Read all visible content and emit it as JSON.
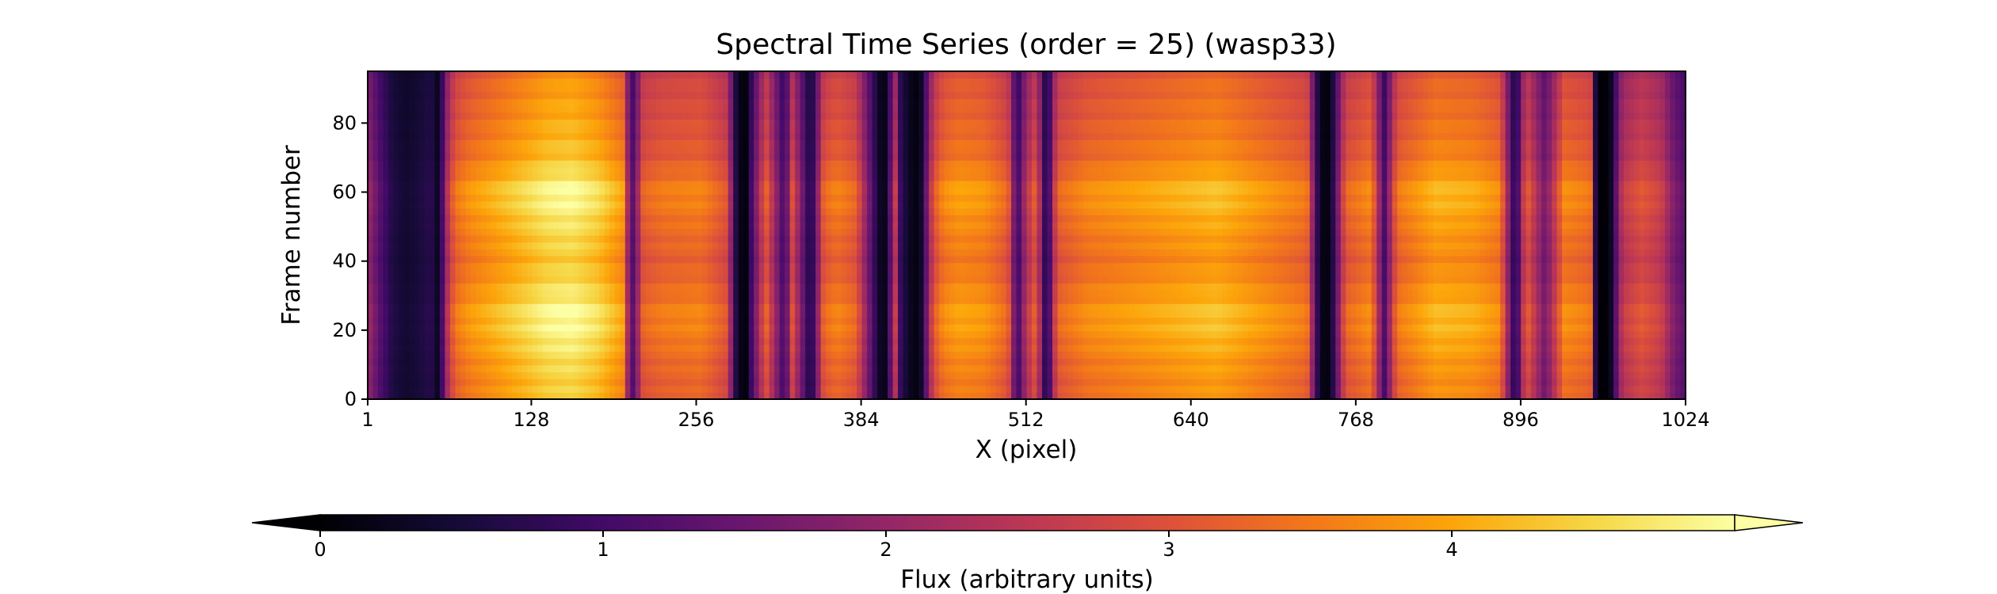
{
  "chart_data": {
    "type": "heatmap",
    "title": "Spectral Time Series (order = 25) (wasp33)",
    "xlabel": "X (pixel)",
    "ylabel": "Frame number",
    "xlim": [
      1,
      1024
    ],
    "ylim": [
      0,
      95
    ],
    "x_ticks": [
      1,
      128,
      256,
      384,
      512,
      640,
      768,
      896,
      1024
    ],
    "y_ticks": [
      0,
      20,
      40,
      60,
      80
    ],
    "colormap": "inferno",
    "colorbar": {
      "label": "Flux (arbitrary units)",
      "range": [
        0,
        5
      ],
      "ticks": [
        0,
        1,
        2,
        3,
        4
      ],
      "extend": "both",
      "orientation": "horizontal",
      "location": "bottom"
    },
    "column_profile": {
      "description_free": true,
      "x": [
        1,
        10,
        20,
        30,
        40,
        50,
        55,
        60,
        64,
        70,
        80,
        100,
        120,
        140,
        160,
        180,
        200,
        205,
        210,
        215,
        230,
        260,
        280,
        288,
        295,
        300,
        310,
        325,
        330,
        345,
        355,
        365,
        380,
        398,
        404,
        410,
        415,
        425,
        430,
        440,
        448,
        460,
        480,
        498,
        505,
        512,
        520,
        528,
        536,
        560,
        600,
        640,
        660,
        700,
        730,
        740,
        748,
        760,
        780,
        790,
        800,
        830,
        860,
        880,
        892,
        900,
        915,
        930,
        950,
        955,
        960,
        965,
        975,
        990,
        1005,
        1015,
        1024
      ],
      "flux": [
        2.0,
        1.2,
        0.6,
        0.4,
        0.5,
        0.7,
        0.3,
        1.2,
        2.6,
        3.2,
        3.5,
        3.8,
        4.1,
        4.4,
        4.5,
        4.2,
        3.6,
        0.9,
        1.8,
        3.0,
        3.2,
        3.3,
        2.8,
        0.2,
        0.1,
        1.2,
        3.0,
        0.8,
        2.8,
        0.4,
        3.0,
        3.3,
        3.0,
        0.3,
        0.2,
        2.6,
        0.7,
        0.1,
        0.2,
        2.8,
        3.4,
        3.6,
        3.5,
        3.0,
        0.8,
        2.2,
        3.0,
        0.3,
        3.0,
        3.4,
        3.6,
        3.8,
        3.9,
        3.5,
        3.2,
        0.2,
        0.1,
        3.0,
        3.4,
        1.0,
        3.2,
        3.8,
        3.7,
        3.4,
        0.4,
        3.0,
        1.5,
        3.4,
        3.2,
        0.05,
        0.0,
        0.05,
        2.4,
        2.8,
        2.5,
        1.6,
        1.2
      ],
      "frame_scale_y": [
        0,
        10,
        20,
        25,
        30,
        40,
        50,
        60,
        70,
        80,
        90,
        95
      ],
      "frame_scale_k": [
        0.98,
        1.02,
        1.1,
        1.12,
        1.06,
        0.98,
        1.04,
        1.12,
        0.97,
        0.92,
        0.88,
        0.85
      ]
    }
  }
}
